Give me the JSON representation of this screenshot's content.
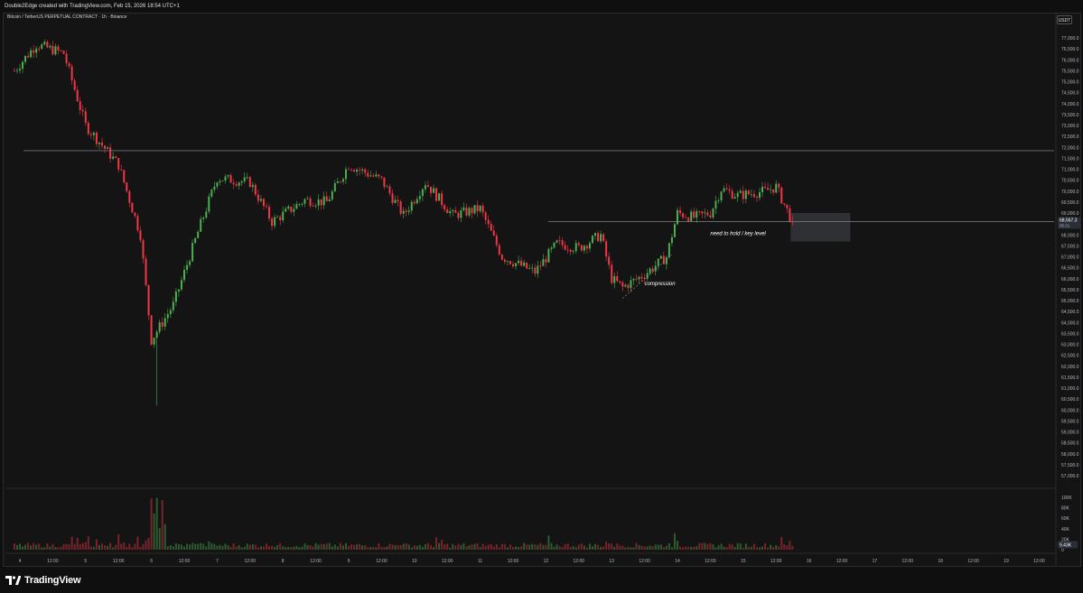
{
  "header": {
    "caption": "Double2Edge created with TradingView.com, Feb 15, 2026 18:54 UTC+1"
  },
  "chart_header": {
    "symbol_title": "Bitcoin / TetherUS PERPETUAL CONTRACT · 1h · Binance",
    "currency": "USDT"
  },
  "footer": {
    "logo_text": "TradingView"
  },
  "chart_data": {
    "type": "candlestick",
    "x_tick_labels": [
      "4",
      "12:00",
      "5",
      "12:00",
      "6",
      "12:00",
      "7",
      "12:00",
      "8",
      "12:00",
      "9",
      "12:00",
      "10",
      "12:00",
      "11",
      "12:00",
      "12",
      "12:00",
      "13",
      "12:00",
      "14",
      "12:00",
      "15",
      "12:00",
      "16",
      "12:00",
      "17",
      "12:00",
      "18",
      "12:00",
      "19",
      "12:00"
    ],
    "y_tick_labels": [
      "77,000.0",
      "76,500.0",
      "76,000.0",
      "75,500.0",
      "75,000.0",
      "74,500.0",
      "74,000.0",
      "73,500.0",
      "73,000.0",
      "72,500.0",
      "72,000.0",
      "71,500.0",
      "71,000.0",
      "70,500.0",
      "70,000.0",
      "69,500.0",
      "69,000.0",
      "68,000.0",
      "67,500.0",
      "67,000.0",
      "66,500.0",
      "66,000.0",
      "65,500.0",
      "65,000.0",
      "64,500.0",
      "64,000.0",
      "63,500.0",
      "63,000.0",
      "62,500.0",
      "62,000.0",
      "61,500.0",
      "61,000.0",
      "60,500.0",
      "60,000.0",
      "59,500.0",
      "59,000.0",
      "58,500.0",
      "58,000.0",
      "57,500.0",
      "57,000.0"
    ],
    "ylim": [
      56500,
      77500
    ],
    "volume_tick_labels": [
      "100K",
      "80K",
      "60K",
      "40K",
      "20K",
      "0"
    ],
    "volume_ylim": [
      0,
      100000
    ],
    "current_price": {
      "label": "68,567.3",
      "countdown": "05:21",
      "value": 68567.3
    },
    "current_volume": {
      "label": "9.43K"
    },
    "horizontal_levels": [
      71850,
      68600
    ],
    "annotations": [
      {
        "text": "compression",
        "x": "13 12:00",
        "y": 65700
      },
      {
        "text": "need to hold / key level",
        "x": "14 12:00",
        "y": 68000
      }
    ],
    "candles_ohlc_anchors": [
      {
        "t": "3 22:00",
        "close": 75500
      },
      {
        "t": "4 06:00",
        "close": 76700
      },
      {
        "t": "4 16:00",
        "close": 76300
      },
      {
        "t": "5 00:00",
        "close": 73000
      },
      {
        "t": "5 12:00",
        "close": 71200
      },
      {
        "t": "5 20:00",
        "close": 68000
      },
      {
        "t": "6 00:00",
        "close": 63200
      },
      {
        "t": "6 02:00",
        "low": 60200
      },
      {
        "t": "6 08:00",
        "close": 64800
      },
      {
        "t": "6 18:00",
        "close": 68500
      },
      {
        "t": "7 00:00",
        "close": 70600
      },
      {
        "t": "7 12:00",
        "close": 70400
      },
      {
        "t": "7 20:00",
        "close": 68600
      },
      {
        "t": "8 08:00",
        "close": 69600
      },
      {
        "t": "8 16:00",
        "close": 69500
      },
      {
        "t": "9 00:00",
        "close": 71200
      },
      {
        "t": "9 12:00",
        "close": 70500
      },
      {
        "t": "9 20:00",
        "close": 68900
      },
      {
        "t": "10 04:00",
        "close": 70400
      },
      {
        "t": "10 14:00",
        "close": 68900
      },
      {
        "t": "11 00:00",
        "close": 69200
      },
      {
        "t": "11 08:00",
        "close": 67000
      },
      {
        "t": "11 20:00",
        "close": 66300
      },
      {
        "t": "12 04:00",
        "close": 67600
      },
      {
        "t": "12 12:00",
        "close": 67400
      },
      {
        "t": "12 20:00",
        "close": 68000
      },
      {
        "t": "13 00:00",
        "close": 66000
      },
      {
        "t": "13 04:00",
        "close": 65600
      },
      {
        "t": "13 12:00",
        "close": 66200
      },
      {
        "t": "13 20:00",
        "close": 67000
      },
      {
        "t": "14 00:00",
        "close": 69000
      },
      {
        "t": "14 06:00",
        "close": 68800
      },
      {
        "t": "14 12:00",
        "close": 69000
      },
      {
        "t": "14 16:00",
        "close": 70100
      },
      {
        "t": "14 22:00",
        "close": 69800
      },
      {
        "t": "15 08:00",
        "close": 70000
      },
      {
        "t": "15 12:00",
        "close": 70200
      },
      {
        "t": "15 18:00",
        "close": 68567.3
      }
    ],
    "colors": {
      "up": "#26a69a",
      "down": "#ef5350",
      "up_bright": "#4caf50",
      "down_bright": "#f23645",
      "background": "#141414"
    }
  }
}
